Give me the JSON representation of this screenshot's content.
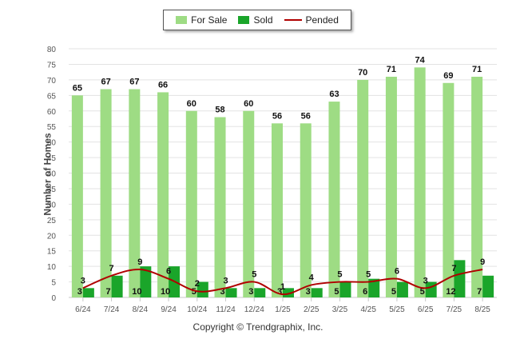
{
  "legend": {
    "for_sale": "For Sale",
    "sold": "Sold",
    "pended": "Pended"
  },
  "copyright": "Copyright © Trendgraphix, Inc.",
  "colors": {
    "for_sale": "#9edc84",
    "sold": "#1aa52a",
    "pended": "#b00000",
    "grid": "#e3e3e3",
    "axis_text": "#555555"
  },
  "chart_data": {
    "type": "bar",
    "title": "",
    "xlabel": "",
    "ylabel": "Number of Homes",
    "ylim": [
      0,
      80
    ],
    "yticks": [
      0,
      5,
      10,
      15,
      20,
      25,
      30,
      35,
      40,
      45,
      50,
      55,
      60,
      65,
      70,
      75,
      80
    ],
    "grid": true,
    "legend_position": "top-center",
    "categories": [
      "6/24",
      "7/24",
      "8/24",
      "9/24",
      "10/24",
      "11/24",
      "12/24",
      "1/25",
      "2/25",
      "3/25",
      "4/25",
      "5/25",
      "6/25",
      "7/25",
      "8/25"
    ],
    "series": [
      {
        "name": "For Sale",
        "kind": "bar",
        "values": [
          65,
          67,
          67,
          66,
          60,
          58,
          60,
          56,
          56,
          63,
          70,
          71,
          74,
          69,
          71
        ]
      },
      {
        "name": "Sold",
        "kind": "bar",
        "values": [
          3,
          7,
          10,
          10,
          5,
          3,
          3,
          3,
          3,
          5,
          6,
          5,
          5,
          12,
          7
        ]
      },
      {
        "name": "Pended",
        "kind": "line",
        "values": [
          3,
          7,
          9,
          6,
          2,
          3,
          5,
          1,
          4,
          5,
          5,
          6,
          3,
          7,
          9
        ]
      }
    ]
  }
}
